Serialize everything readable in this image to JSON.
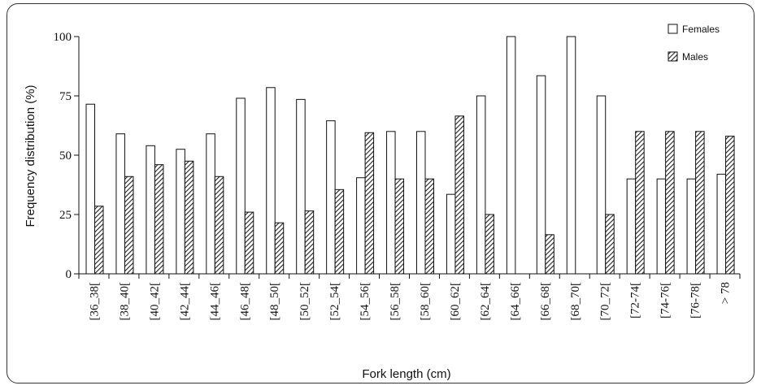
{
  "chart_data": {
    "type": "bar",
    "title": "",
    "xlabel": "Fork length (cm)",
    "ylabel": "Frequency distribution (%)",
    "ylim": [
      0,
      100
    ],
    "yticks": [
      "0",
      "25",
      "50",
      "75",
      "100"
    ],
    "grid": false,
    "legend_position": "top-right",
    "categories": [
      "[36_38[",
      "[38_40[",
      "[40_42[",
      "[42_44[",
      "[44_46[",
      "[46_48[",
      "[48_50[",
      "[50_52[",
      "[52_54[",
      "[54_56[",
      "[56_58[",
      "[58_60[",
      "[60_62[",
      "[62_64[",
      "[64_66[",
      "[66_68[",
      "[68_70[",
      "[70_72[",
      "[72-74[",
      "[74-76[",
      "[76-78[",
      "> 78"
    ],
    "series": [
      {
        "name": "Females",
        "fill": "white",
        "values": [
          71.5,
          59,
          54,
          52.5,
          59,
          74,
          78.5,
          73.5,
          64.5,
          40.5,
          60,
          60,
          33.5,
          75,
          100,
          83.5,
          100,
          75,
          40,
          40,
          40,
          42
        ]
      },
      {
        "name": "Males",
        "fill": "hatched",
        "values": [
          28.5,
          41,
          46,
          47.5,
          41,
          26,
          21.5,
          26.5,
          35.5,
          59.5,
          40,
          40,
          66.5,
          25,
          0,
          16.5,
          0,
          25,
          60,
          60,
          60,
          58
        ]
      }
    ]
  }
}
